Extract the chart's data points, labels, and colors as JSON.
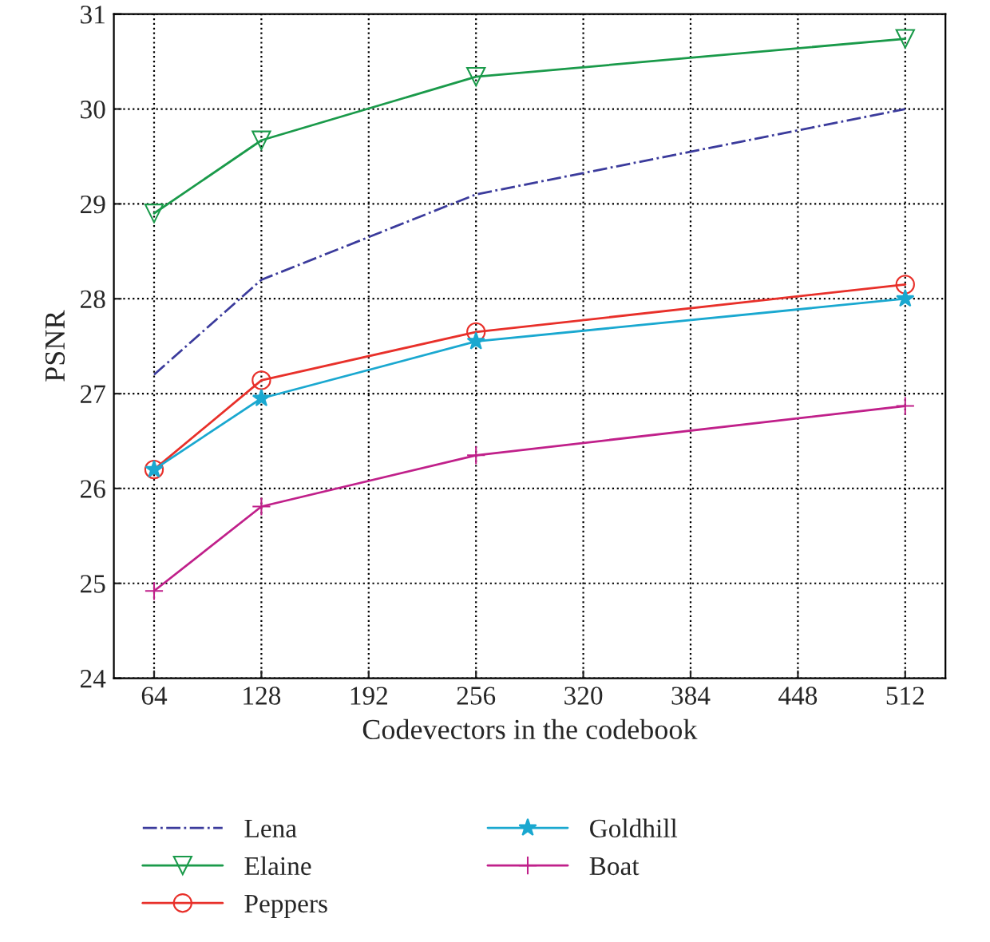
{
  "chart_data": {
    "type": "line",
    "xlabel": "Codevectors in the codebook",
    "ylabel": "PSNR",
    "x": [
      64,
      128,
      256,
      512
    ],
    "xlim": [
      40,
      536
    ],
    "xticks": [
      64,
      128,
      192,
      256,
      320,
      384,
      448,
      512
    ],
    "ylim": [
      24,
      31
    ],
    "yticks": [
      24,
      25,
      26,
      27,
      28,
      29,
      30,
      31
    ],
    "grid": true,
    "legend": "bottom",
    "series": [
      {
        "name": "Lena",
        "color": "#3b3b9c",
        "marker": "none",
        "line_style": "dashdot",
        "values": [
          27.2,
          28.2,
          29.1,
          30.0
        ]
      },
      {
        "name": "Elaine",
        "color": "#1a9a4a",
        "marker": "triangle",
        "line_style": "solid",
        "values": [
          28.9,
          29.67,
          30.34,
          30.74
        ]
      },
      {
        "name": "Peppers",
        "color": "#e8302a",
        "marker": "circle",
        "line_style": "solid",
        "values": [
          26.2,
          27.14,
          27.65,
          28.15
        ]
      },
      {
        "name": "Goldhill",
        "color": "#1aa8d0",
        "marker": "star",
        "line_style": "solid",
        "values": [
          26.2,
          26.95,
          27.55,
          28.0
        ]
      },
      {
        "name": "Boat",
        "color": "#c0208a",
        "marker": "cross",
        "line_style": "solid",
        "values": [
          24.92,
          25.81,
          26.35,
          26.87
        ]
      }
    ]
  }
}
